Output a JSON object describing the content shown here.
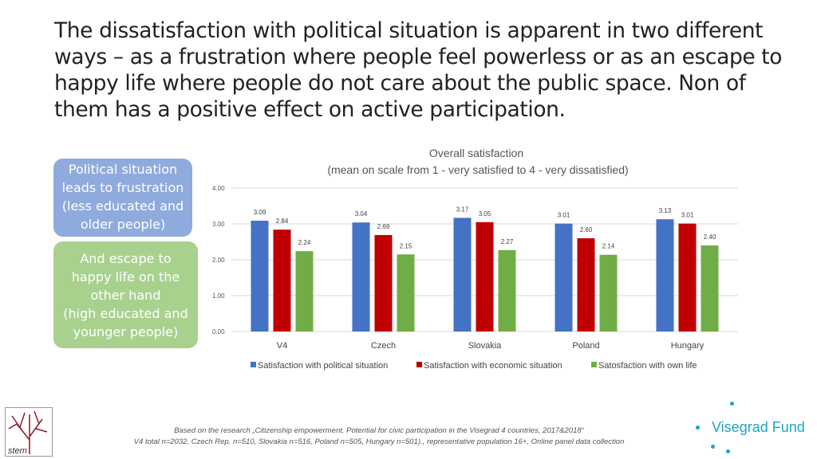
{
  "title": "The  dissatisfaction with political situation is apparent in two different ways – as a frustration where people feel powerless or as an escape to happy life where people do not care about the public space. Non of them has a positive effect on active participation.",
  "boxes": {
    "frustration": [
      "Political situation",
      "leads to frustration",
      "(less educated and",
      "older people)"
    ],
    "escape": [
      "And escape to",
      "happy life on the",
      "other hand",
      "(high educated and",
      "younger people)"
    ]
  },
  "chart_data": {
    "type": "bar",
    "title": "Overall satisfaction",
    "subtitle": "(mean on  scale from 1 - very satisfied to 4 - very dissatisfied)",
    "categories": [
      "V4",
      "Czech",
      "Slovakia",
      "Poland",
      "Hungary"
    ],
    "ylim": [
      0,
      4
    ],
    "yticks": [
      "0.00",
      "1.00",
      "2.00",
      "3.00",
      "4.00"
    ],
    "grid": true,
    "legend_position": "bottom",
    "series": [
      {
        "name": "Satisfaction with political situation",
        "color": "#4472c4",
        "values": [
          3.09,
          3.04,
          3.17,
          3.01,
          3.13
        ]
      },
      {
        "name": "Satisfaction with economic situation",
        "color": "#c00000",
        "values": [
          2.84,
          2.69,
          3.05,
          2.6,
          3.01
        ]
      },
      {
        "name": "Satosfaction with own life",
        "color": "#70ad47",
        "values": [
          2.24,
          2.15,
          2.27,
          2.14,
          2.4
        ]
      }
    ]
  },
  "footer": {
    "line1": "Based on the research  „Citizenship empowerment. Potential for civic participation in the Visegrad 4 countries, 2017&2018“",
    "line2": "V4 total n=2032, Czech Rep. n=510, Slovakia n=516, Poland n=505, Hungary n=501)., representative population 16+, Online panel data collection"
  },
  "logos": {
    "stem": "stem",
    "visegrad": "Visegrad Fund"
  }
}
